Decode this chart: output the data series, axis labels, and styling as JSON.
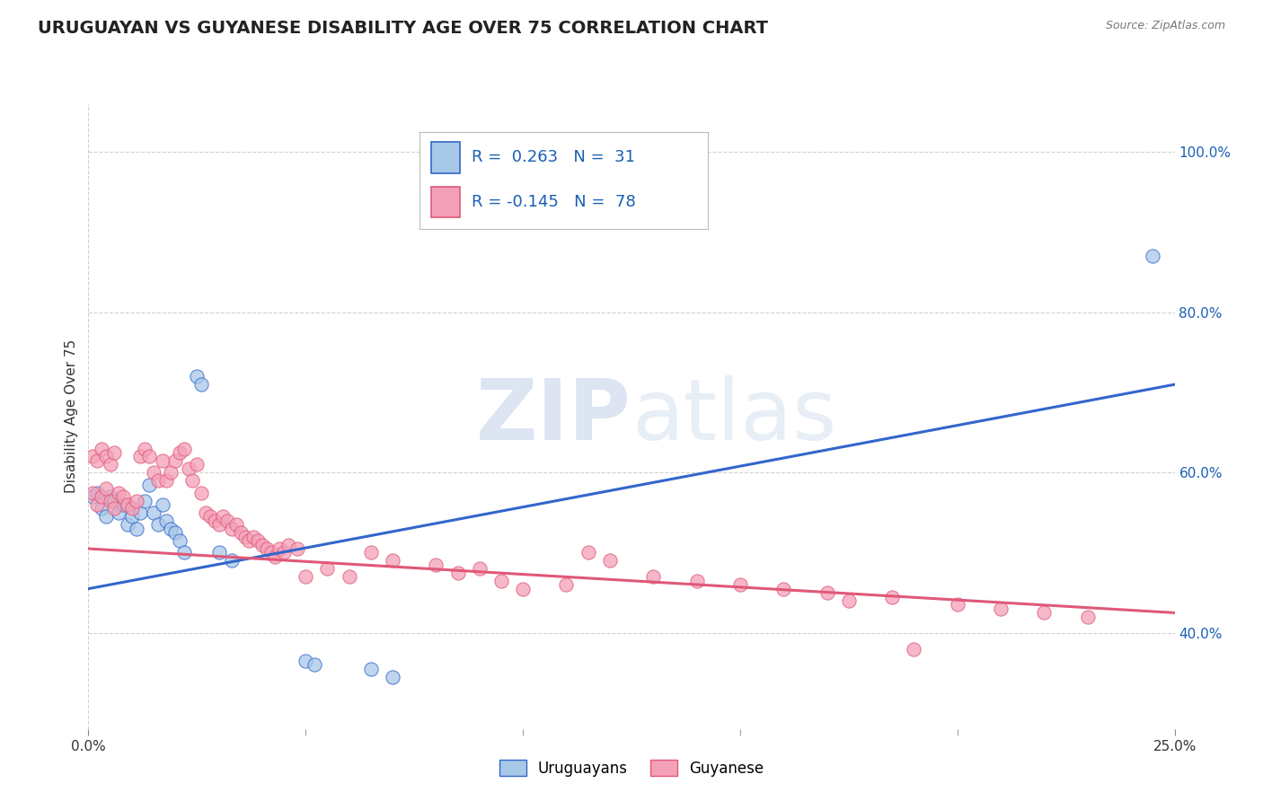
{
  "title": "URUGUAYAN VS GUYANESE DISABILITY AGE OVER 75 CORRELATION CHART",
  "source": "Source: ZipAtlas.com",
  "ylabel": "Disability Age Over 75",
  "xlim": [
    0.0,
    0.25
  ],
  "ylim": [
    0.28,
    1.06
  ],
  "uruguayan_color": "#a8c8e8",
  "guyanese_color": "#f4a0b8",
  "uruguayan_line_color": "#3366cc",
  "guyanese_line_color": "#e05878",
  "uruguayan_scatter": [
    [
      0.001,
      0.57
    ],
    [
      0.002,
      0.575
    ],
    [
      0.003,
      0.555
    ],
    [
      0.004,
      0.545
    ],
    [
      0.005,
      0.57
    ],
    [
      0.006,
      0.565
    ],
    [
      0.007,
      0.55
    ],
    [
      0.008,
      0.56
    ],
    [
      0.009,
      0.535
    ],
    [
      0.01,
      0.545
    ],
    [
      0.011,
      0.53
    ],
    [
      0.012,
      0.55
    ],
    [
      0.013,
      0.565
    ],
    [
      0.014,
      0.585
    ],
    [
      0.015,
      0.55
    ],
    [
      0.016,
      0.535
    ],
    [
      0.017,
      0.56
    ],
    [
      0.018,
      0.54
    ],
    [
      0.019,
      0.53
    ],
    [
      0.02,
      0.525
    ],
    [
      0.021,
      0.515
    ],
    [
      0.022,
      0.5
    ],
    [
      0.025,
      0.72
    ],
    [
      0.026,
      0.71
    ],
    [
      0.03,
      0.5
    ],
    [
      0.033,
      0.49
    ],
    [
      0.05,
      0.365
    ],
    [
      0.052,
      0.36
    ],
    [
      0.065,
      0.355
    ],
    [
      0.07,
      0.345
    ],
    [
      0.245,
      0.87
    ]
  ],
  "guyanese_scatter": [
    [
      0.001,
      0.575
    ],
    [
      0.002,
      0.56
    ],
    [
      0.003,
      0.57
    ],
    [
      0.004,
      0.58
    ],
    [
      0.005,
      0.565
    ],
    [
      0.006,
      0.555
    ],
    [
      0.007,
      0.575
    ],
    [
      0.008,
      0.57
    ],
    [
      0.009,
      0.56
    ],
    [
      0.01,
      0.555
    ],
    [
      0.011,
      0.565
    ],
    [
      0.012,
      0.62
    ],
    [
      0.013,
      0.63
    ],
    [
      0.014,
      0.62
    ],
    [
      0.015,
      0.6
    ],
    [
      0.016,
      0.59
    ],
    [
      0.017,
      0.615
    ],
    [
      0.018,
      0.59
    ],
    [
      0.019,
      0.6
    ],
    [
      0.02,
      0.615
    ],
    [
      0.021,
      0.625
    ],
    [
      0.022,
      0.63
    ],
    [
      0.023,
      0.605
    ],
    [
      0.024,
      0.59
    ],
    [
      0.025,
      0.61
    ],
    [
      0.026,
      0.575
    ],
    [
      0.027,
      0.55
    ],
    [
      0.028,
      0.545
    ],
    [
      0.029,
      0.54
    ],
    [
      0.03,
      0.535
    ],
    [
      0.031,
      0.545
    ],
    [
      0.032,
      0.54
    ],
    [
      0.033,
      0.53
    ],
    [
      0.034,
      0.535
    ],
    [
      0.035,
      0.525
    ],
    [
      0.036,
      0.52
    ],
    [
      0.037,
      0.515
    ],
    [
      0.038,
      0.52
    ],
    [
      0.039,
      0.515
    ],
    [
      0.04,
      0.51
    ],
    [
      0.041,
      0.505
    ],
    [
      0.042,
      0.5
    ],
    [
      0.043,
      0.495
    ],
    [
      0.044,
      0.505
    ],
    [
      0.045,
      0.5
    ],
    [
      0.046,
      0.51
    ],
    [
      0.048,
      0.505
    ],
    [
      0.05,
      0.47
    ],
    [
      0.055,
      0.48
    ],
    [
      0.06,
      0.47
    ],
    [
      0.065,
      0.5
    ],
    [
      0.07,
      0.49
    ],
    [
      0.08,
      0.485
    ],
    [
      0.085,
      0.475
    ],
    [
      0.09,
      0.48
    ],
    [
      0.095,
      0.465
    ],
    [
      0.1,
      0.455
    ],
    [
      0.11,
      0.46
    ],
    [
      0.115,
      0.5
    ],
    [
      0.12,
      0.49
    ],
    [
      0.13,
      0.47
    ],
    [
      0.14,
      0.465
    ],
    [
      0.15,
      0.46
    ],
    [
      0.16,
      0.455
    ],
    [
      0.17,
      0.45
    ],
    [
      0.175,
      0.44
    ],
    [
      0.185,
      0.445
    ],
    [
      0.19,
      0.38
    ],
    [
      0.2,
      0.435
    ],
    [
      0.21,
      0.43
    ],
    [
      0.22,
      0.425
    ],
    [
      0.23,
      0.42
    ],
    [
      0.001,
      0.62
    ],
    [
      0.002,
      0.615
    ],
    [
      0.003,
      0.63
    ],
    [
      0.004,
      0.62
    ],
    [
      0.005,
      0.61
    ],
    [
      0.006,
      0.625
    ]
  ],
  "uruguayan_trendline": [
    [
      0.0,
      0.455
    ],
    [
      0.25,
      0.71
    ]
  ],
  "guyanese_trendline": [
    [
      0.0,
      0.505
    ],
    [
      0.25,
      0.425
    ]
  ],
  "background_color": "#ffffff",
  "grid_color": "#cccccc",
  "title_fontsize": 14,
  "axis_label_fontsize": 11,
  "tick_fontsize": 11,
  "legend_color": "#1a5fb4"
}
